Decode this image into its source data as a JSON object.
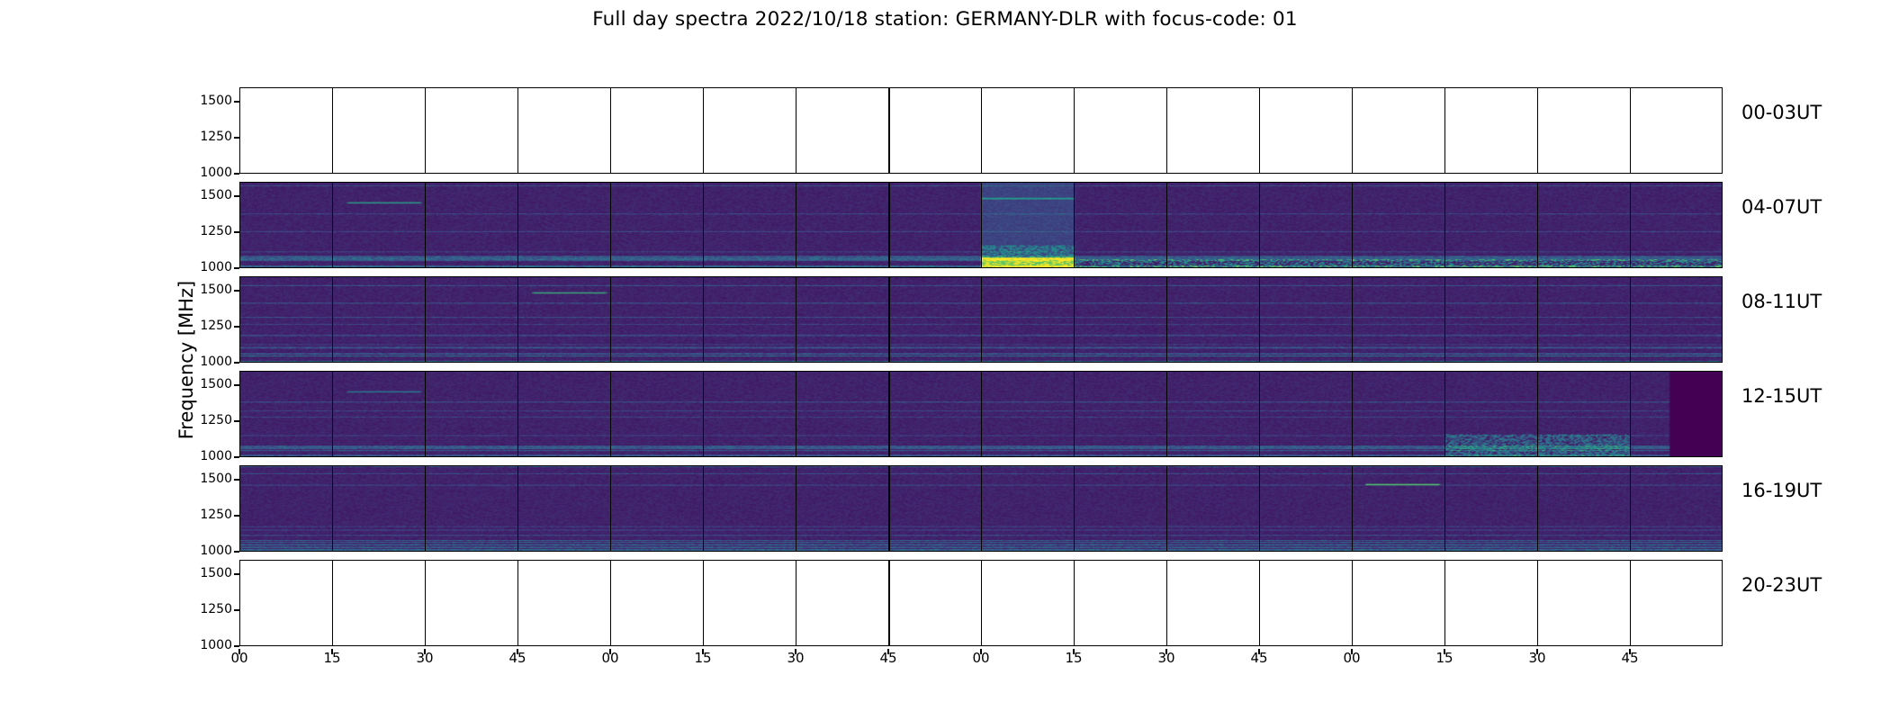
{
  "chart_data": {
    "type": "heatmap",
    "title": "Full day spectra 2022/10/18 station: GERMANY-DLR with focus-code: 01",
    "ylabel": "Frequency [MHz]",
    "xlabel": "",
    "y_ticks": [
      "1000",
      "1250",
      "1500"
    ],
    "ylim": [
      1000,
      1600
    ],
    "x_ticks": [
      "00",
      "15",
      "30",
      "45",
      "00",
      "15",
      "30",
      "45",
      "00",
      "15",
      "30",
      "45",
      "00",
      "15",
      "30",
      "45"
    ],
    "colormap": "viridis",
    "colors": {
      "low": "#440154",
      "mid": "#21918c",
      "high": "#fde725"
    },
    "grid": false,
    "panels": [
      {
        "label": "00-03UT",
        "has_data": false
      },
      {
        "label": "04-07UT",
        "has_data": true
      },
      {
        "label": "08-11UT",
        "has_data": true
      },
      {
        "label": "12-15UT",
        "has_data": true
      },
      {
        "label": "16-19UT",
        "has_data": true
      },
      {
        "label": "20-23UT",
        "has_data": false
      }
    ],
    "segments_per_panel": 16
  }
}
